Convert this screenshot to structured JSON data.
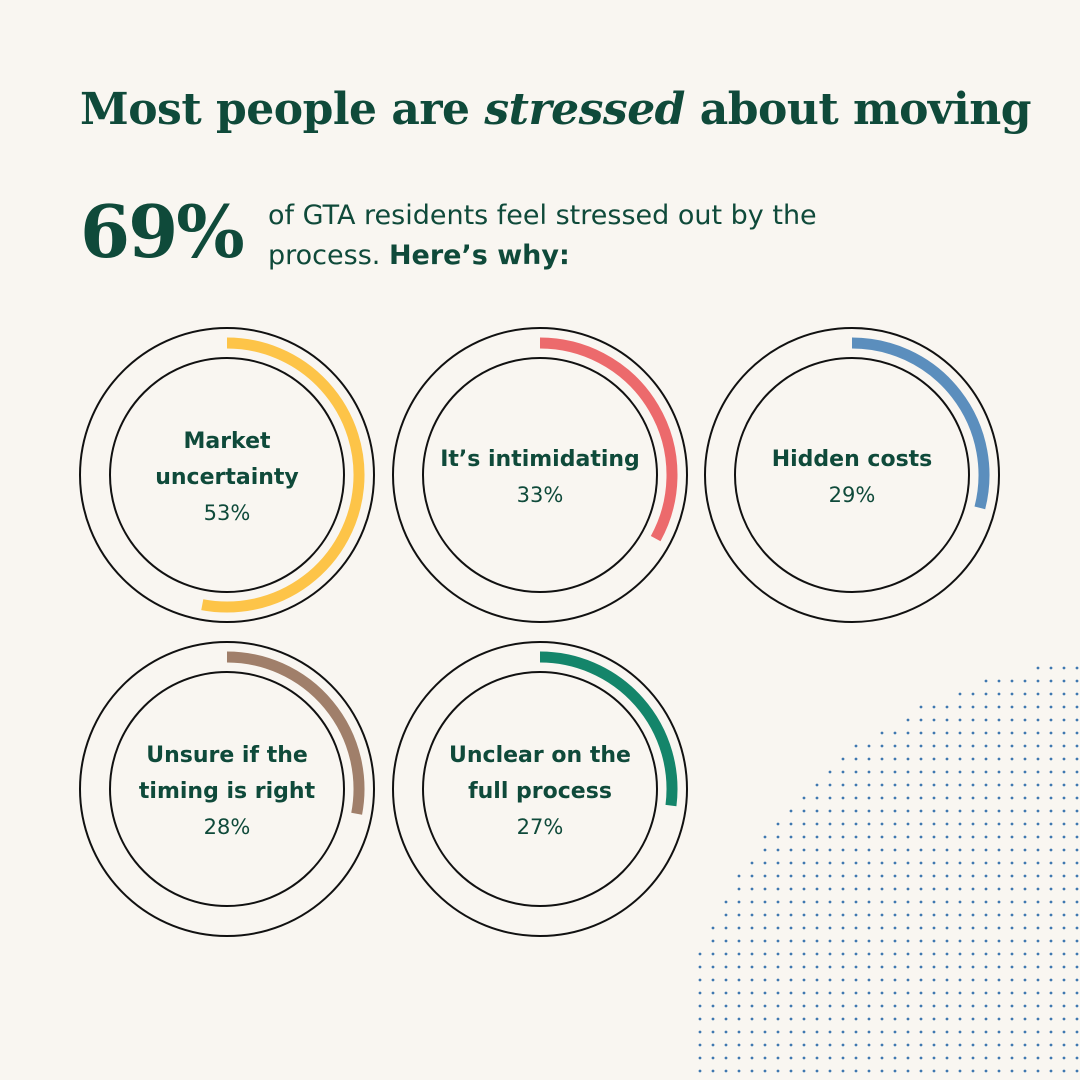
{
  "header": {
    "title_before": "Most people are ",
    "title_emphasis": "stressed",
    "title_after": " about moving"
  },
  "stat": {
    "value": "69%",
    "text": "of GTA residents feel stressed out by the process.",
    "emphasis": "Here’s why:"
  },
  "chart_data": {
    "type": "radial-progress",
    "title": "",
    "categories": [
      "Market uncertainty",
      "It’s intimidating",
      "Hidden costs",
      "Unsure if the timing is right",
      "Unclear on the full process"
    ],
    "series": [
      {
        "values": [
          53,
          33,
          29,
          28,
          27
        ]
      }
    ],
    "labels": [
      [
        "Market",
        "uncertainty"
      ],
      [
        "It’s intimidating"
      ],
      [
        "Hidden costs"
      ],
      [
        "Unsure if the",
        "timing is right"
      ],
      [
        "Unclear on the",
        "full process"
      ]
    ],
    "value_labels": [
      "53%",
      "33%",
      "29%",
      "28%",
      "27%"
    ],
    "colors": [
      "#fdc448",
      "#ec6a6c",
      "#5b8ebd",
      "#a07f6a",
      "#14856a"
    ],
    "scale_max": 100,
    "ring_color": "#111111"
  },
  "colors": {
    "background": "#f9f6f1",
    "text": "#0f4a3a",
    "dots": "#3f78b0"
  }
}
